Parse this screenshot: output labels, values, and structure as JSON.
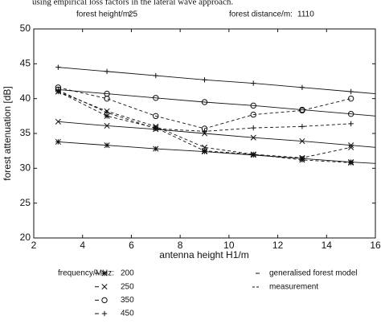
{
  "caption": "using empirical loss factors in the lateral wave approach.",
  "parameters": [
    {
      "label": "forest height/m:",
      "value": "25"
    },
    {
      "label": "forest distance/m:",
      "value": "1110"
    }
  ],
  "chart_data": {
    "type": "line",
    "x_label": "antenna height H1/m",
    "y_label": "forest attenuation [dB]",
    "xlim": [
      2,
      16
    ],
    "xticks": [
      2,
      4,
      6,
      8,
      10,
      12,
      14,
      16
    ],
    "ylim": [
      20,
      50
    ],
    "yticks": [
      20,
      25,
      30,
      35,
      40,
      45,
      50
    ],
    "grid": false,
    "color": "#111111",
    "legend_title": "frequency/MHz:",
    "line_styles": {
      "model": "generalised forest model",
      "measurement": "measurement"
    },
    "model_x": [
      3,
      5,
      7,
      9,
      11,
      13,
      15,
      16
    ],
    "x": [
      3,
      5,
      7,
      9,
      11,
      13,
      15
    ],
    "series": [
      {
        "name": "200",
        "marker": "*",
        "model": [
          33.8,
          33.3,
          32.8,
          32.4,
          31.9,
          31.4,
          30.9,
          30.7
        ],
        "measurement": [
          41,
          37.5,
          35.8,
          32.5,
          32,
          31.2,
          30.8
        ]
      },
      {
        "name": "250",
        "marker": "x",
        "model": [
          36.7,
          36.1,
          35.6,
          35.0,
          34.4,
          33.9,
          33.3,
          33.0
        ],
        "measurement": [
          41,
          38.2,
          36,
          33,
          32,
          31.5,
          33
        ]
      },
      {
        "name": "350",
        "marker": "o",
        "model": [
          41.3,
          40.7,
          40.1,
          39.5,
          39.0,
          38.4,
          37.8,
          37.5
        ],
        "measurement": [
          41.6,
          40,
          37.5,
          35.7,
          37.7,
          38.3,
          40
        ]
      },
      {
        "name": "450",
        "marker": "+",
        "model": [
          44.5,
          43.9,
          43.3,
          42.7,
          42.2,
          41.6,
          41.0,
          40.7
        ],
        "measurement": [
          41.2,
          38,
          35.7,
          35.3,
          35.8,
          36,
          36.4
        ]
      }
    ]
  }
}
